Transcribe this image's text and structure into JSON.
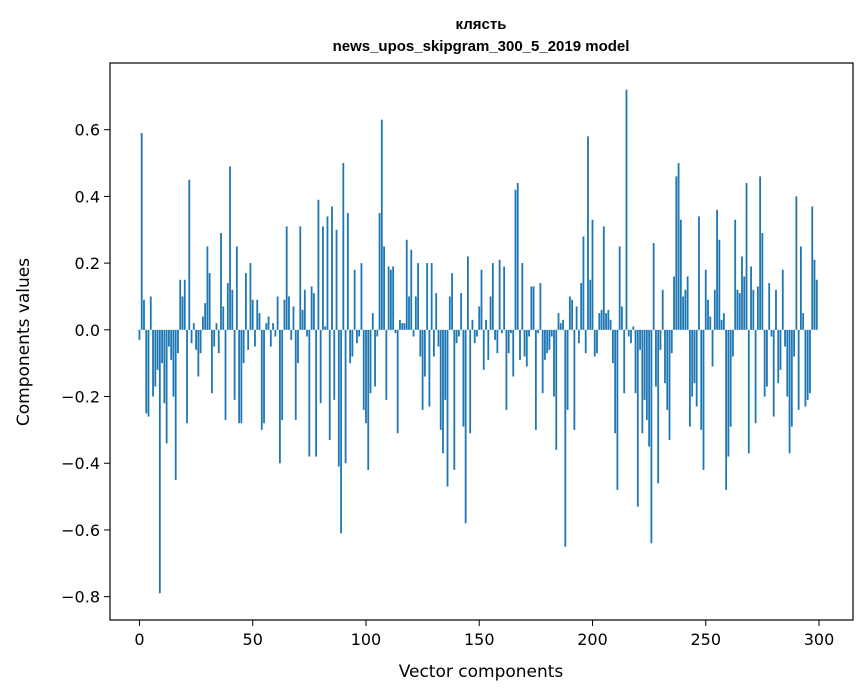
{
  "chart_data": {
    "type": "bar",
    "title_lines": [
      "клясть",
      "news_upos_skipgram_300_5_2019 model"
    ],
    "xlabel": "Vector components",
    "ylabel": "Components values",
    "xlim": [
      -13,
      315
    ],
    "ylim": [
      -0.87,
      0.8
    ],
    "x_ticks": [
      0,
      50,
      100,
      150,
      200,
      250,
      300
    ],
    "y_ticks": [
      -0.8,
      -0.6,
      -0.4,
      -0.2,
      0.0,
      0.2,
      0.4,
      0.6
    ],
    "y_tick_labels": [
      "−0.8",
      "−0.6",
      "−0.4",
      "−0.2",
      "0.0",
      "0.2",
      "0.4",
      "0.6"
    ],
    "bar_color": "#1f77b4",
    "grid": false,
    "values": [
      -0.03,
      0.59,
      0.09,
      -0.25,
      -0.26,
      0.1,
      -0.2,
      -0.17,
      -0.12,
      -0.79,
      -0.1,
      -0.22,
      -0.34,
      -0.05,
      -0.09,
      -0.2,
      -0.45,
      -0.07,
      0.15,
      0.1,
      0.15,
      -0.28,
      0.45,
      -0.04,
      0.02,
      -0.06,
      -0.14,
      -0.07,
      0.04,
      0.08,
      0.25,
      0.17,
      -0.19,
      -0.05,
      0.02,
      -0.07,
      0.29,
      0.07,
      -0.27,
      0.14,
      0.49,
      0.12,
      -0.21,
      0.25,
      -0.28,
      -0.28,
      -0.1,
      0.17,
      -0.06,
      0.2,
      0.09,
      -0.05,
      0.09,
      0.05,
      -0.3,
      -0.28,
      0.02,
      0.04,
      -0.05,
      0.02,
      -0.02,
      0.1,
      -0.4,
      -0.27,
      0.09,
      0.31,
      0.1,
      -0.03,
      0.07,
      -0.27,
      -0.1,
      0.31,
      0.06,
      0.12,
      -0.02,
      -0.38,
      0.13,
      0.11,
      -0.38,
      0.39,
      -0.22,
      0.31,
      0.01,
      0.34,
      -0.33,
      0.37,
      -0.21,
      0.3,
      -0.41,
      -0.61,
      0.5,
      -0.4,
      0.35,
      -0.1,
      -0.08,
      0.18,
      -0.04,
      -0.02,
      0.2,
      -0.24,
      -0.28,
      -0.42,
      -0.19,
      0.05,
      -0.17,
      -0.02,
      0.35,
      0.63,
      0.25,
      -0.21,
      0.19,
      0.18,
      0.19,
      -0.01,
      -0.31,
      0.03,
      0.02,
      0.02,
      0.27,
      0.1,
      0.24,
      -0.02,
      0.1,
      0.2,
      -0.08,
      -0.24,
      -0.14,
      0.2,
      -0.23,
      0.2,
      -0.08,
      0.11,
      -0.05,
      -0.3,
      -0.37,
      -0.21,
      -0.47,
      0.1,
      0.17,
      -0.42,
      -0.04,
      -0.02,
      0.11,
      -0.29,
      -0.58,
      0.22,
      -0.31,
      0.03,
      -0.04,
      -0.02,
      0.07,
      0.18,
      -0.12,
      0.03,
      -0.09,
      0.1,
      0.2,
      -0.03,
      -0.07,
      0.21,
      -0.01,
      0.19,
      -0.24,
      -0.07,
      -0.01,
      -0.14,
      0.42,
      0.44,
      -0.09,
      0.2,
      -0.08,
      -0.11,
      -0.02,
      0.13,
      0.13,
      -0.3,
      -0.01,
      0.14,
      -0.19,
      -0.09,
      -0.07,
      -0.06,
      -0.02,
      -0.2,
      -0.36,
      0.05,
      0.02,
      0.03,
      -0.65,
      -0.24,
      0.1,
      0.09,
      -0.3,
      0.07,
      -0.04,
      0.14,
      0.28,
      -0.07,
      0.58,
      0.15,
      0.33,
      -0.08,
      -0.07,
      0.05,
      0.06,
      0.31,
      0.05,
      0.06,
      0.03,
      -0.1,
      -0.31,
      -0.48,
      0.25,
      0.07,
      -0.19,
      0.72,
      -0.02,
      -0.04,
      0.01,
      -0.19,
      -0.53,
      -0.06,
      -0.31,
      -0.21,
      -0.27,
      -0.35,
      -0.64,
      0.26,
      -0.17,
      -0.46,
      -0.06,
      0.12,
      -0.16,
      -0.24,
      -0.33,
      -0.07,
      0.16,
      0.46,
      0.5,
      0.33,
      0.1,
      0.12,
      0.16,
      -0.29,
      -0.2,
      -0.16,
      -0.23,
      0.34,
      -0.3,
      -0.42,
      0.18,
      0.09,
      0.04,
      -0.11,
      0.12,
      0.36,
      0.27,
      0.03,
      0.05,
      -0.48,
      -0.38,
      -0.29,
      -0.08,
      0.33,
      0.12,
      0.11,
      0.22,
      0.16,
      0.44,
      -0.37,
      0.19,
      0.12,
      -0.28,
      0.13,
      0.46,
      0.29,
      -0.2,
      -0.17,
      0.14,
      -0.02,
      -0.26,
      0.12,
      -0.16,
      -0.12,
      0.18,
      -0.05,
      -0.2,
      -0.37,
      -0.29,
      -0.08,
      0.4,
      -0.24,
      0.25,
      0.05,
      -0.23,
      -0.21,
      -0.19,
      0.37,
      0.21,
      0.15
    ]
  }
}
